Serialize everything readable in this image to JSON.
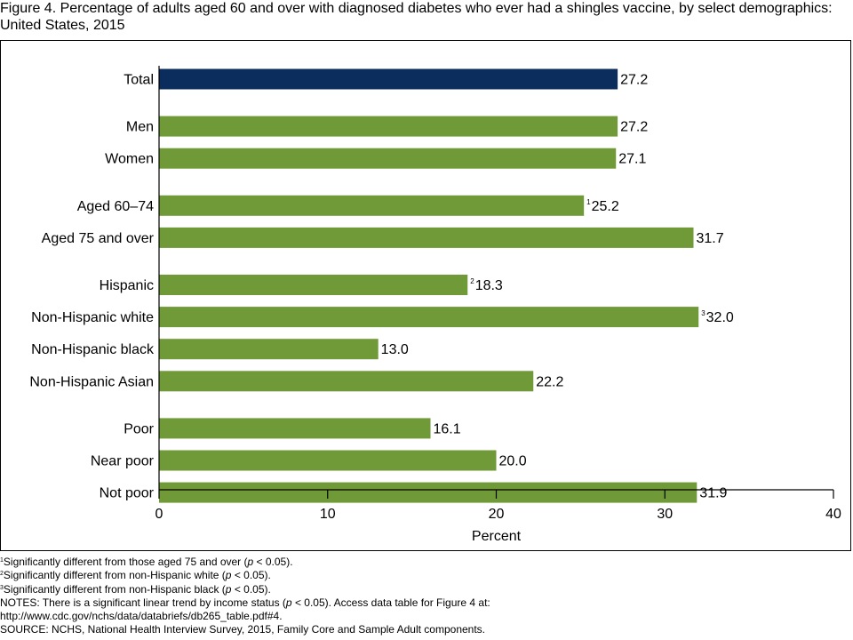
{
  "title": "Figure 4. Percentage of adults aged 60 and over with diagnosed diabetes who ever had a shingles vaccine, by select demographics: United States, 2015",
  "colors": {
    "total_bar": "#0b2d5e",
    "group_bar": "#6f9a37",
    "axis": "#000000"
  },
  "chart_data": {
    "type": "bar",
    "orientation": "horizontal",
    "title": "Percentage of adults aged 60 and over with diagnosed diabetes who ever had a shingles vaccine, by select demographics: United States, 2015",
    "xlabel": "Percent",
    "ylabel": "",
    "xlim": [
      0,
      40
    ],
    "xticks": [
      "0",
      "10",
      "20",
      "30",
      "40"
    ],
    "grid": false,
    "categories": [
      {
        "label": "Total",
        "value": 27.2,
        "value_label": "27.2",
        "note": "",
        "group": "total"
      },
      {
        "label": "Men",
        "value": 27.2,
        "value_label": "27.2",
        "note": "",
        "group": "sex"
      },
      {
        "label": "Women",
        "value": 27.1,
        "value_label": "27.1",
        "note": "",
        "group": "sex"
      },
      {
        "label": "Aged 60–74",
        "value": 25.2,
        "value_label": "25.2",
        "note": "1",
        "group": "age"
      },
      {
        "label": "Aged 75 and over",
        "value": 31.7,
        "value_label": "31.7",
        "note": "",
        "group": "age"
      },
      {
        "label": "Hispanic",
        "value": 18.3,
        "value_label": "18.3",
        "note": "2",
        "group": "race"
      },
      {
        "label": "Non-Hispanic white",
        "value": 32.0,
        "value_label": "32.0",
        "note": "3",
        "group": "race"
      },
      {
        "label": "Non-Hispanic black",
        "value": 13.0,
        "value_label": "13.0",
        "note": "",
        "group": "race"
      },
      {
        "label": "Non-Hispanic Asian",
        "value": 22.2,
        "value_label": "22.2",
        "note": "",
        "group": "race"
      },
      {
        "label": "Poor",
        "value": 16.1,
        "value_label": "16.1",
        "note": "",
        "group": "income"
      },
      {
        "label": "Near poor",
        "value": 20.0,
        "value_label": "20.0",
        "note": "",
        "group": "income"
      },
      {
        "label": "Not poor",
        "value": 31.9,
        "value_label": "31.9",
        "note": "",
        "group": "income"
      }
    ]
  },
  "footnotes": {
    "fn1": {
      "sup": "1",
      "text_before": "Significantly different from those aged 75 and over (",
      "p": "p",
      "text_after": " < 0.05)."
    },
    "fn2": {
      "sup": "2",
      "text_before": "Significantly different from non-Hispanic white (",
      "p": "p",
      "text_after": " < 0.05)."
    },
    "fn3": {
      "sup": "3",
      "text_before": "Significantly different from non-Hispanic black (",
      "p": "p",
      "text_after": " < 0.05)."
    },
    "notes": {
      "text_before": "NOTES: There is a significant linear trend by income status (",
      "p": "p",
      "text_after": " < 0.05). Access data table for Figure 4 at:"
    },
    "url": "http://www.cdc.gov/nchs/data/databriefs/db265_table.pdf#4.",
    "source": "SOURCE: NCHS, National Health Interview Survey, 2015, Family Core and Sample Adult components."
  }
}
